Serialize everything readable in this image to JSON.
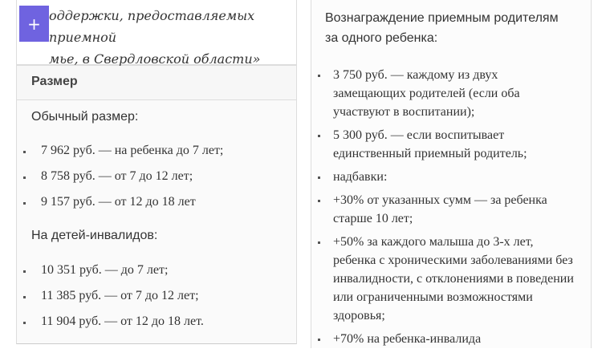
{
  "left": {
    "quote_lines": [
      "оддержки, предоставляемых приемной",
      "мье, в Свердловской области»"
    ],
    "plus_button": "+",
    "header": "Размер",
    "regular_title": "Обычный размер:",
    "regular_items": [
      "7 962 руб. — на ребенка до 7 лет;",
      "8 758 руб. — от 7 до 12 лет;",
      "9 157 руб. — от 12 до 18 лет"
    ],
    "disabled_title": "На детей-инвалидов:",
    "disabled_items": [
      "10 351 руб. — до 7 лет;",
      "11 385 руб. — от 7 до 12 лет;",
      "11 904 руб. — от 12 до 18 лет."
    ]
  },
  "right": {
    "title_lines": [
      "Вознаграждение приемным родителям",
      "за одного ребенка:"
    ],
    "items": [
      "3 750 руб. — каждому из двух замещающих родителей (если оба участвуют в воспитании);",
      "5 300 руб. — если воспитывает единственный приемный родитель;",
      "надбавки:",
      "+30% от указанных сумм — за ребенка старше 10 лет;",
      "+50% за каждого малыша до 3-х лет, ребенка с хроническими заболеваниями без инвалидности, с отклонениями в поведении или ограниченными возможностями здоровья;",
      "+70% на ребенка-инвалида"
    ]
  }
}
